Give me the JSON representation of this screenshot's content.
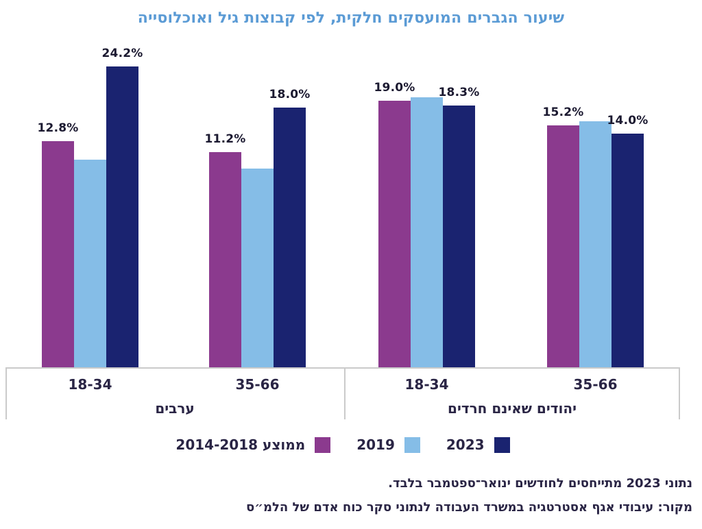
{
  "chart_data": {
    "type": "bar",
    "title": "שיעור הגברים המועסקים חלקית, לפי קבוצות גיל ואוכלוסייה",
    "title_color": "#5B9BD5",
    "sections": [
      {
        "label": "ערבים",
        "categories": [
          "18-34",
          "35-66"
        ]
      },
      {
        "label": "יהודים שאינם חרדים",
        "categories": [
          "18-34",
          "35-66"
        ]
      }
    ],
    "series": [
      {
        "name": "ממוצע 2014-2018",
        "color": "#8B3A8E",
        "values": [
          12.8,
          11.2,
          19.0,
          15.2
        ],
        "data_labels": [
          "12.8%",
          "11.2%",
          "19.0%",
          "15.2%"
        ]
      },
      {
        "name": "2019",
        "color": "#85BDE7",
        "values": [
          10.0,
          8.7,
          19.5,
          15.9
        ],
        "data_labels": [
          null,
          null,
          null,
          null
        ],
        "values_estimated_from_bar_heights": true
      },
      {
        "name": "2023",
        "color": "#1A2370",
        "values": [
          24.2,
          18.0,
          18.3,
          14.0
        ],
        "data_labels": [
          "24.2%",
          "18.0%",
          "18.3%",
          "14.0%"
        ]
      }
    ],
    "value_suffix": "%",
    "ylim": [
      -21.8,
      25.8
    ],
    "grid": false,
    "y_axis_ticks": false,
    "legend_position": "bottom-center"
  },
  "footnotes": {
    "line1": "נתוני 2023 מתייחסים לחודשים ינואר־ספטמבר בלבד.",
    "line2": "מקור: עיבודי אגף אסטרטגיה במשרד העבודה לנתוני סקר כוח אדם של הלמ״ס"
  },
  "colors": {
    "axis_line": "#CACACA",
    "data_label_text": "#1B1930",
    "axis_text": "#2A2545"
  }
}
